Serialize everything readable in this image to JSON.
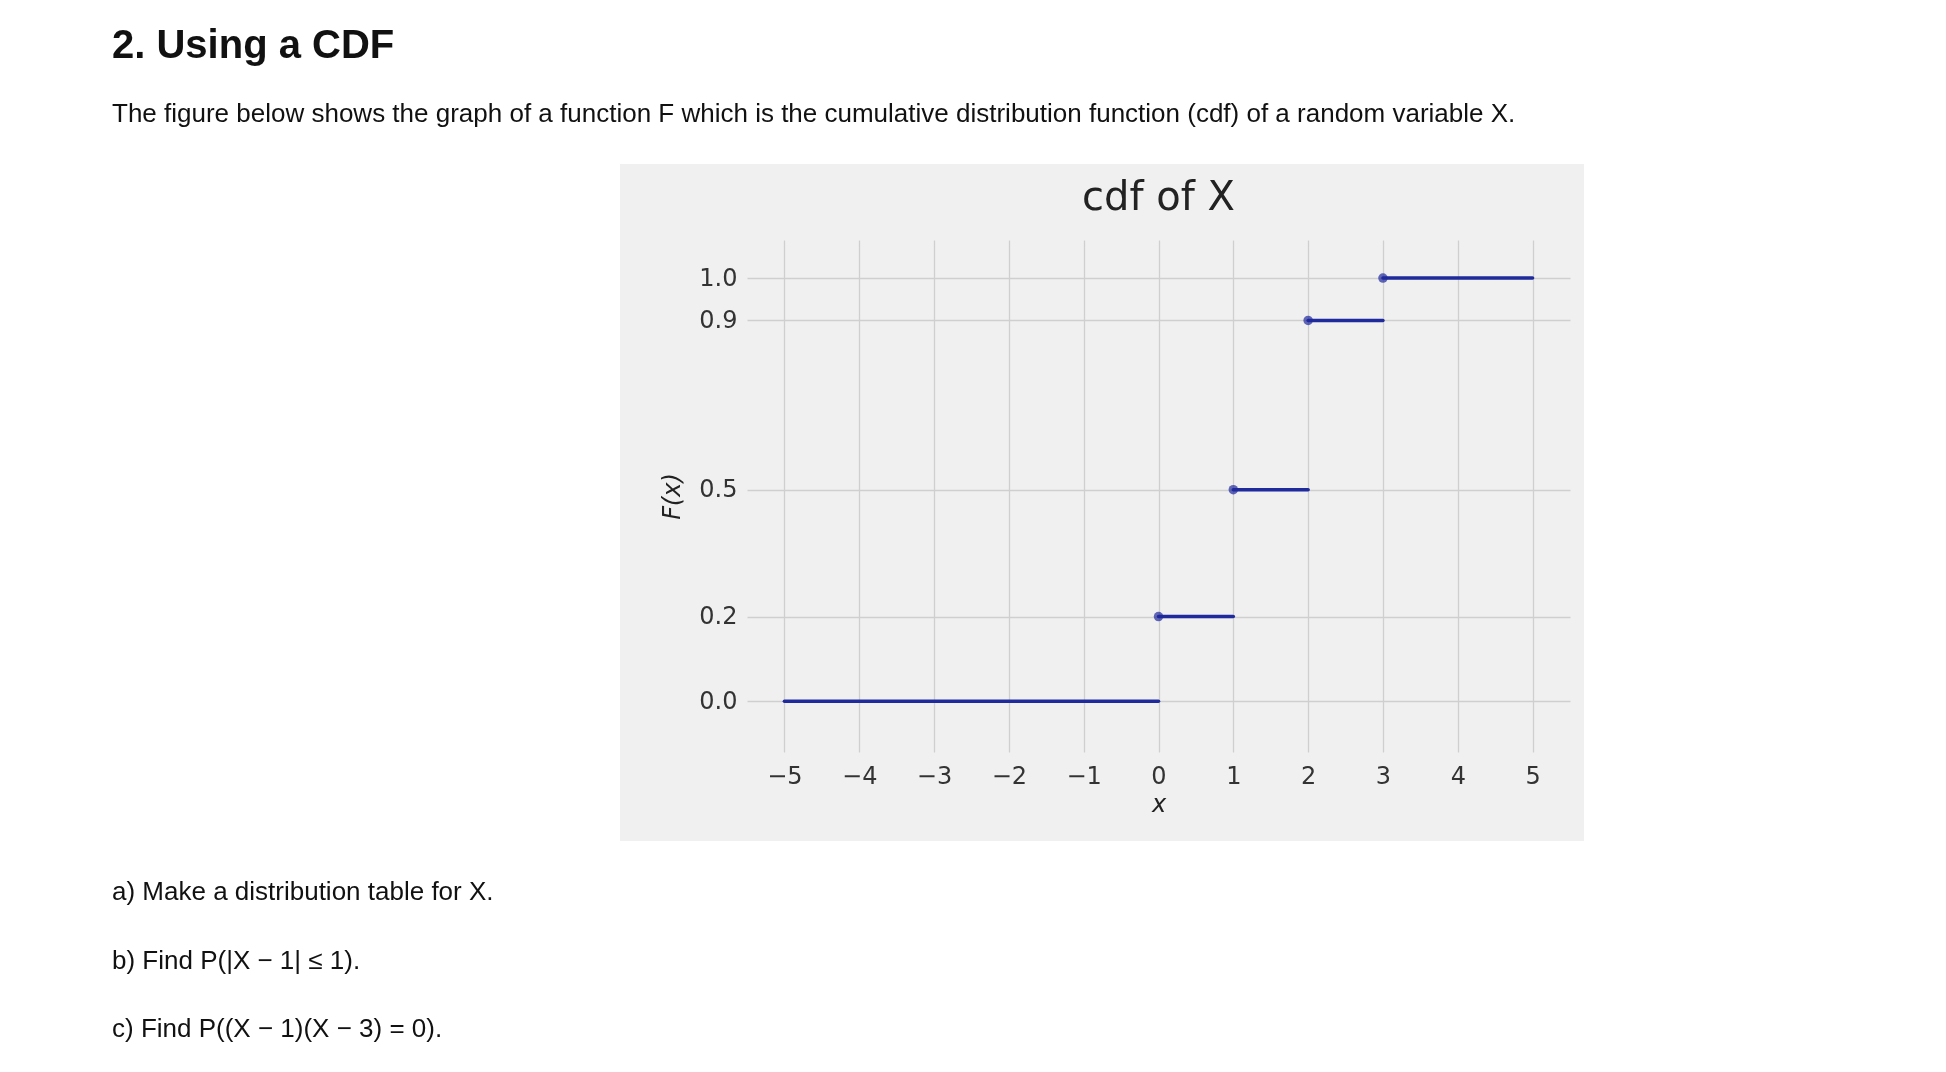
{
  "chart_data": {
    "type": "line",
    "title": "cdf of X",
    "xlabel": "x",
    "ylabel": "F(x)",
    "annotations": [
      "2. Using a CDF",
      "The figure below shows the graph of a function F which is the cumulative distribution function (cdf) of a random variable X.",
      "a) Make a distribution table for X.",
      "b) Find P(|X − 1| ≤ 1).",
      "c) Find P((X − 1)(X − 3) = 0)."
    ],
    "series": [
      {
        "type": "line",
        "color": "#1f2a9c",
        "x": [
          -5,
          0
        ],
        "values": [
          0,
          0
        ]
      },
      {
        "type": "line",
        "color": "#1f2a9c",
        "x": [
          0,
          1
        ],
        "values": [
          0.2,
          0.2
        ]
      },
      {
        "type": "line",
        "color": "#1f2a9c",
        "x": [
          1,
          2
        ],
        "values": [
          0.5,
          0.5
        ]
      },
      {
        "type": "line",
        "color": "#1f2a9c",
        "x": [
          2,
          3
        ],
        "values": [
          0.9,
          0.9
        ]
      },
      {
        "type": "line",
        "color": "#1f2a9c",
        "x": [
          3,
          5
        ],
        "values": [
          1.0,
          1.0
        ]
      },
      {
        "type": "scatter",
        "color": "#1f2a9c",
        "marker": "circle",
        "x": [
          0,
          1,
          2,
          3
        ],
        "values": [
          0.2,
          0.5,
          0.9,
          1.0
        ]
      }
    ],
    "xlim": [
      -5.5,
      5.5
    ],
    "xticks": [
      {
        "value": -5,
        "label": "−5"
      },
      {
        "value": -4,
        "label": "−4"
      },
      {
        "value": -3,
        "label": "−3"
      },
      {
        "value": -2,
        "label": "−2"
      },
      {
        "value": -1,
        "label": "−1"
      },
      0,
      1,
      2,
      3,
      4,
      5
    ],
    "ylim": [
      -0.12,
      1.09
    ],
    "yticks": [
      {
        "value": 0,
        "label": "0.0"
      },
      0.2,
      0.5,
      0.9,
      {
        "value": 1,
        "label": "1.0"
      }
    ],
    "grid": true
  }
}
